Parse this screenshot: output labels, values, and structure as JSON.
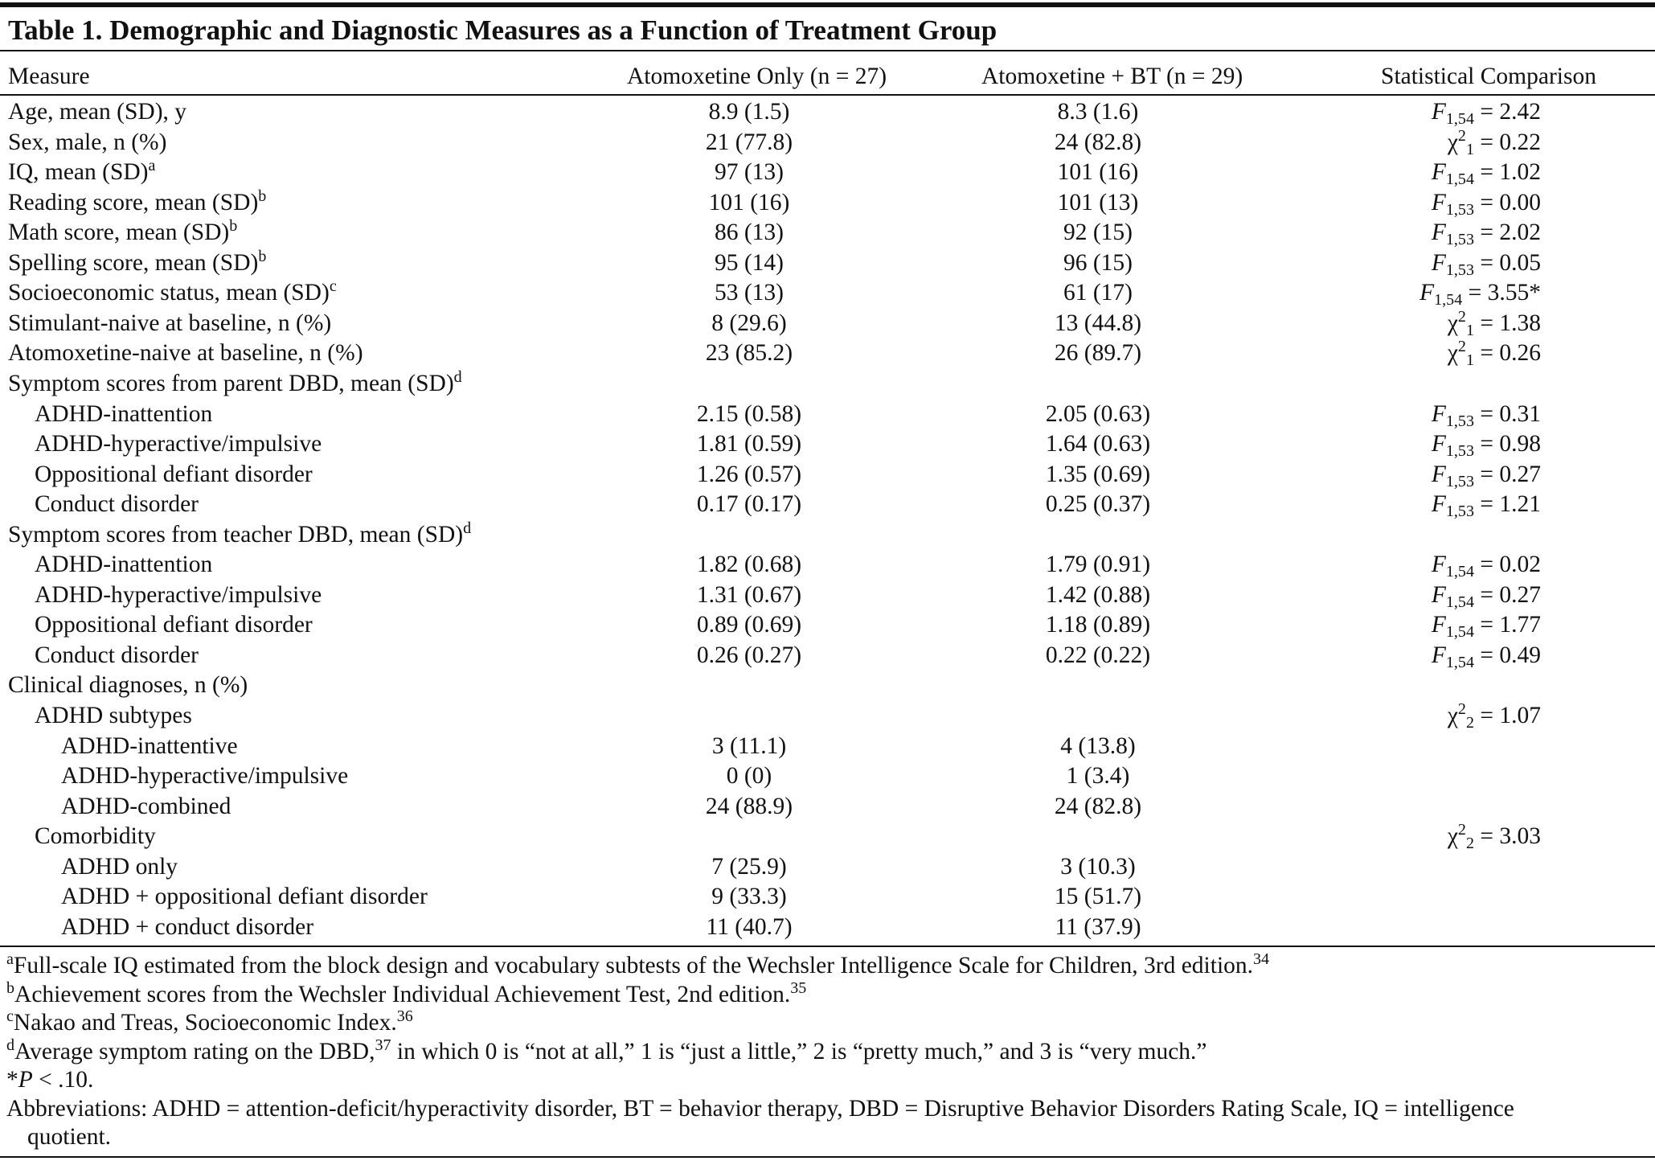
{
  "table": {
    "title": "Table 1. Demographic and Diagnostic Measures as a Function of Treatment Group",
    "columns": [
      "Measure",
      "Atomoxetine Only (n = 27)",
      "Atomoxetine + BT (n = 29)",
      "Statistical Comparison"
    ],
    "rows": [
      {
        "label": "Age, mean (SD), y",
        "values": [
          "8.9 (1.5)",
          "8.3 (1.6)"
        ],
        "stat": [
          {
            "i": "F"
          },
          {
            "sub": "1,54"
          },
          {
            "t": " = 2.42"
          }
        ]
      },
      {
        "label": "Sex, male, n (%)",
        "values": [
          "21 (77.8)",
          "24 (82.8)"
        ],
        "stat": [
          {
            "t": "χ"
          },
          {
            "sup": "2"
          },
          {
            "sub": "1"
          },
          {
            "t": " = 0.22"
          }
        ]
      },
      {
        "label": [
          {
            "t": "IQ, mean (SD)"
          },
          {
            "sup": "a"
          }
        ],
        "values": [
          "97 (13)",
          "101 (16)"
        ],
        "stat": [
          {
            "i": "F"
          },
          {
            "sub": "1,54"
          },
          {
            "t": " = 1.02"
          }
        ]
      },
      {
        "label": [
          {
            "t": "Reading score, mean (SD)"
          },
          {
            "sup": "b"
          }
        ],
        "values": [
          "101 (16)",
          "101 (13)"
        ],
        "stat": [
          {
            "i": "F"
          },
          {
            "sub": "1,53"
          },
          {
            "t": " = 0.00"
          }
        ]
      },
      {
        "label": [
          {
            "t": "Math score, mean (SD)"
          },
          {
            "sup": "b"
          }
        ],
        "values": [
          "86 (13)",
          "92 (15)"
        ],
        "stat": [
          {
            "i": "F"
          },
          {
            "sub": "1,53"
          },
          {
            "t": " = 2.02"
          }
        ]
      },
      {
        "label": [
          {
            "t": "Spelling score, mean (SD)"
          },
          {
            "sup": "b"
          }
        ],
        "values": [
          "95 (14)",
          "96 (15)"
        ],
        "stat": [
          {
            "i": "F"
          },
          {
            "sub": "1,53"
          },
          {
            "t": " = 0.05"
          }
        ]
      },
      {
        "label": [
          {
            "t": "Socioeconomic status, mean (SD)"
          },
          {
            "sup": "c"
          }
        ],
        "values": [
          "53 (13)",
          "61 (17)"
        ],
        "stat": [
          {
            "i": "F"
          },
          {
            "sub": "1,54"
          },
          {
            "t": " = 3.55*"
          }
        ]
      },
      {
        "label": "Stimulant-naive at baseline, n (%)",
        "values": [
          "8 (29.6)",
          "13 (44.8)"
        ],
        "stat": [
          {
            "t": "χ"
          },
          {
            "sup": "2"
          },
          {
            "sub": "1"
          },
          {
            "t": " = 1.38"
          }
        ]
      },
      {
        "label": "Atomoxetine-naive at baseline, n (%)",
        "values": [
          "23 (85.2)",
          "26 (89.7)"
        ],
        "stat": [
          {
            "t": "χ"
          },
          {
            "sup": "2"
          },
          {
            "sub": "1"
          },
          {
            "t": " = 0.26"
          }
        ]
      },
      {
        "label": [
          {
            "t": "Symptom scores from parent DBD, mean (SD)"
          },
          {
            "sup": "d"
          }
        ],
        "rows": [
          {
            "label": "ADHD-inattention",
            "values": [
              "2.15 (0.58)",
              "2.05 (0.63)"
            ],
            "stat": [
              {
                "i": "F"
              },
              {
                "sub": "1,53"
              },
              {
                "t": " = 0.31"
              }
            ]
          },
          {
            "label": "ADHD-hyperactive/impulsive",
            "values": [
              "1.81 (0.59)",
              "1.64 (0.63)"
            ],
            "stat": [
              {
                "i": "F"
              },
              {
                "sub": "1,53"
              },
              {
                "t": " = 0.98"
              }
            ]
          },
          {
            "label": "Oppositional defiant disorder",
            "values": [
              "1.26 (0.57)",
              "1.35 (0.69)"
            ],
            "stat": [
              {
                "i": "F"
              },
              {
                "sub": "1,53"
              },
              {
                "t": " = 0.27"
              }
            ]
          },
          {
            "label": "Conduct disorder",
            "values": [
              "0.17 (0.17)",
              "0.25 (0.37)"
            ],
            "stat": [
              {
                "i": "F"
              },
              {
                "sub": "1,53"
              },
              {
                "t": " = 1.21"
              }
            ]
          }
        ]
      },
      {
        "label": [
          {
            "t": "Symptom scores from teacher DBD, mean (SD)"
          },
          {
            "sup": "d"
          }
        ],
        "rows": [
          {
            "label": "ADHD-inattention",
            "values": [
              "1.82 (0.68)",
              "1.79 (0.91)"
            ],
            "stat": [
              {
                "i": "F"
              },
              {
                "sub": "1,54"
              },
              {
                "t": " = 0.02"
              }
            ]
          },
          {
            "label": "ADHD-hyperactive/impulsive",
            "values": [
              "1.31 (0.67)",
              "1.42 (0.88)"
            ],
            "stat": [
              {
                "i": "F"
              },
              {
                "sub": "1,54"
              },
              {
                "t": " = 0.27"
              }
            ]
          },
          {
            "label": "Oppositional defiant disorder",
            "values": [
              "0.89 (0.69)",
              "1.18 (0.89)"
            ],
            "stat": [
              {
                "i": "F"
              },
              {
                "sub": "1,54"
              },
              {
                "t": " = 1.77"
              }
            ]
          },
          {
            "label": "Conduct disorder",
            "values": [
              "0.26 (0.27)",
              "0.22 (0.22)"
            ],
            "stat": [
              {
                "i": "F"
              },
              {
                "sub": "1,54"
              },
              {
                "t": " = 0.49"
              }
            ]
          }
        ]
      },
      {
        "label": "Clinical diagnoses, n (%)",
        "rows": [
          {
            "label": "ADHD subtypes",
            "stat": [
              {
                "t": "χ"
              },
              {
                "sup": "2"
              },
              {
                "sub": "2"
              },
              {
                "t": " = 1.07"
              }
            ],
            "rows": [
              {
                "label": "ADHD-inattentive",
                "values": [
                  "3 (11.1)",
                  "4 (13.8)"
                ]
              },
              {
                "label": "ADHD-hyperactive/impulsive",
                "values": [
                  "0 (0)",
                  "1 (3.4)"
                ]
              },
              {
                "label": "ADHD-combined",
                "values": [
                  "24 (88.9)",
                  "24 (82.8)"
                ]
              }
            ]
          },
          {
            "label": "Comorbidity",
            "stat": [
              {
                "t": "χ"
              },
              {
                "sup": "2"
              },
              {
                "sub": "2"
              },
              {
                "t": " = 3.03"
              }
            ],
            "rows": [
              {
                "label": "ADHD only",
                "values": [
                  "7 (25.9)",
                  "3 (10.3)"
                ]
              },
              {
                "label": "ADHD + oppositional defiant disorder",
                "values": [
                  "9 (33.3)",
                  "15 (51.7)"
                ]
              },
              {
                "label": "ADHD + conduct disorder",
                "values": [
                  "11 (40.7)",
                  "11 (37.9)"
                ]
              }
            ]
          }
        ]
      }
    ]
  },
  "footnotes": [
    [
      {
        "sup": "a"
      },
      {
        "t": "Full-scale IQ estimated from the block design and vocabulary subtests of the Wechsler Intelligence Scale for Children, 3rd edition."
      },
      {
        "sup": "34"
      }
    ],
    [
      {
        "sup": "b"
      },
      {
        "t": "Achievement scores from the Wechsler Individual Achievement Test, 2nd edition."
      },
      {
        "sup": "35"
      }
    ],
    [
      {
        "sup": "c"
      },
      {
        "t": "Nakao and Treas, Socioeconomic Index."
      },
      {
        "sup": "36"
      }
    ],
    [
      {
        "sup": "d"
      },
      {
        "t": "Average symptom rating on the DBD,"
      },
      {
        "sup": "37"
      },
      {
        "t": " in which 0 is “not at all,” 1 is “just a little,” 2 is “pretty much,” and 3 is “very much.”"
      }
    ],
    [
      {
        "t": "*"
      },
      {
        "i": "P"
      },
      {
        "t": " < .10."
      }
    ],
    "Abbreviations: ADHD = attention-deficit/hyperactivity disorder, BT = behavior therapy, DBD = Disruptive Behavior Disorders Rating Scale, IQ = intelligence quotient."
  ]
}
